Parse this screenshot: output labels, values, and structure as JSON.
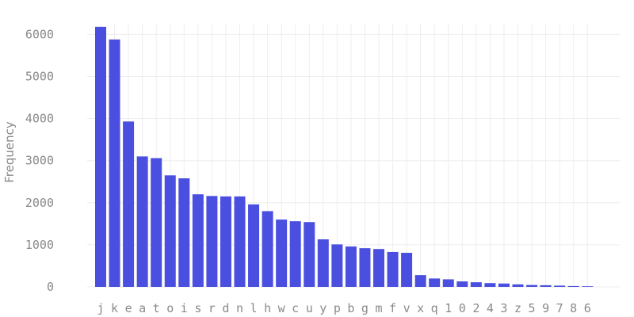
{
  "chart_data": {
    "type": "bar",
    "title": "",
    "xlabel": "",
    "ylabel": "Frequency",
    "ylim": [
      0,
      6300
    ],
    "yticks": [
      0,
      1000,
      2000,
      3000,
      4000,
      5000,
      6000
    ],
    "grid": true,
    "bar_color": "#4a4fe0",
    "categories": [
      "j",
      "k",
      "e",
      "a",
      "t",
      "o",
      "i",
      "s",
      "r",
      "d",
      "n",
      "l",
      "h",
      "w",
      "c",
      "u",
      "y",
      "p",
      "b",
      "g",
      "m",
      "f",
      "v",
      "x",
      "q",
      "1",
      "0",
      "2",
      "4",
      "3",
      "z",
      "5",
      "9",
      "7",
      "8",
      "6"
    ],
    "values": [
      6180,
      5880,
      3930,
      3100,
      3060,
      2650,
      2580,
      2200,
      2160,
      2150,
      2150,
      1960,
      1800,
      1600,
      1560,
      1540,
      1130,
      1010,
      960,
      920,
      900,
      830,
      810,
      280,
      200,
      180,
      130,
      110,
      90,
      80,
      60,
      45,
      40,
      30,
      20,
      15
    ]
  }
}
